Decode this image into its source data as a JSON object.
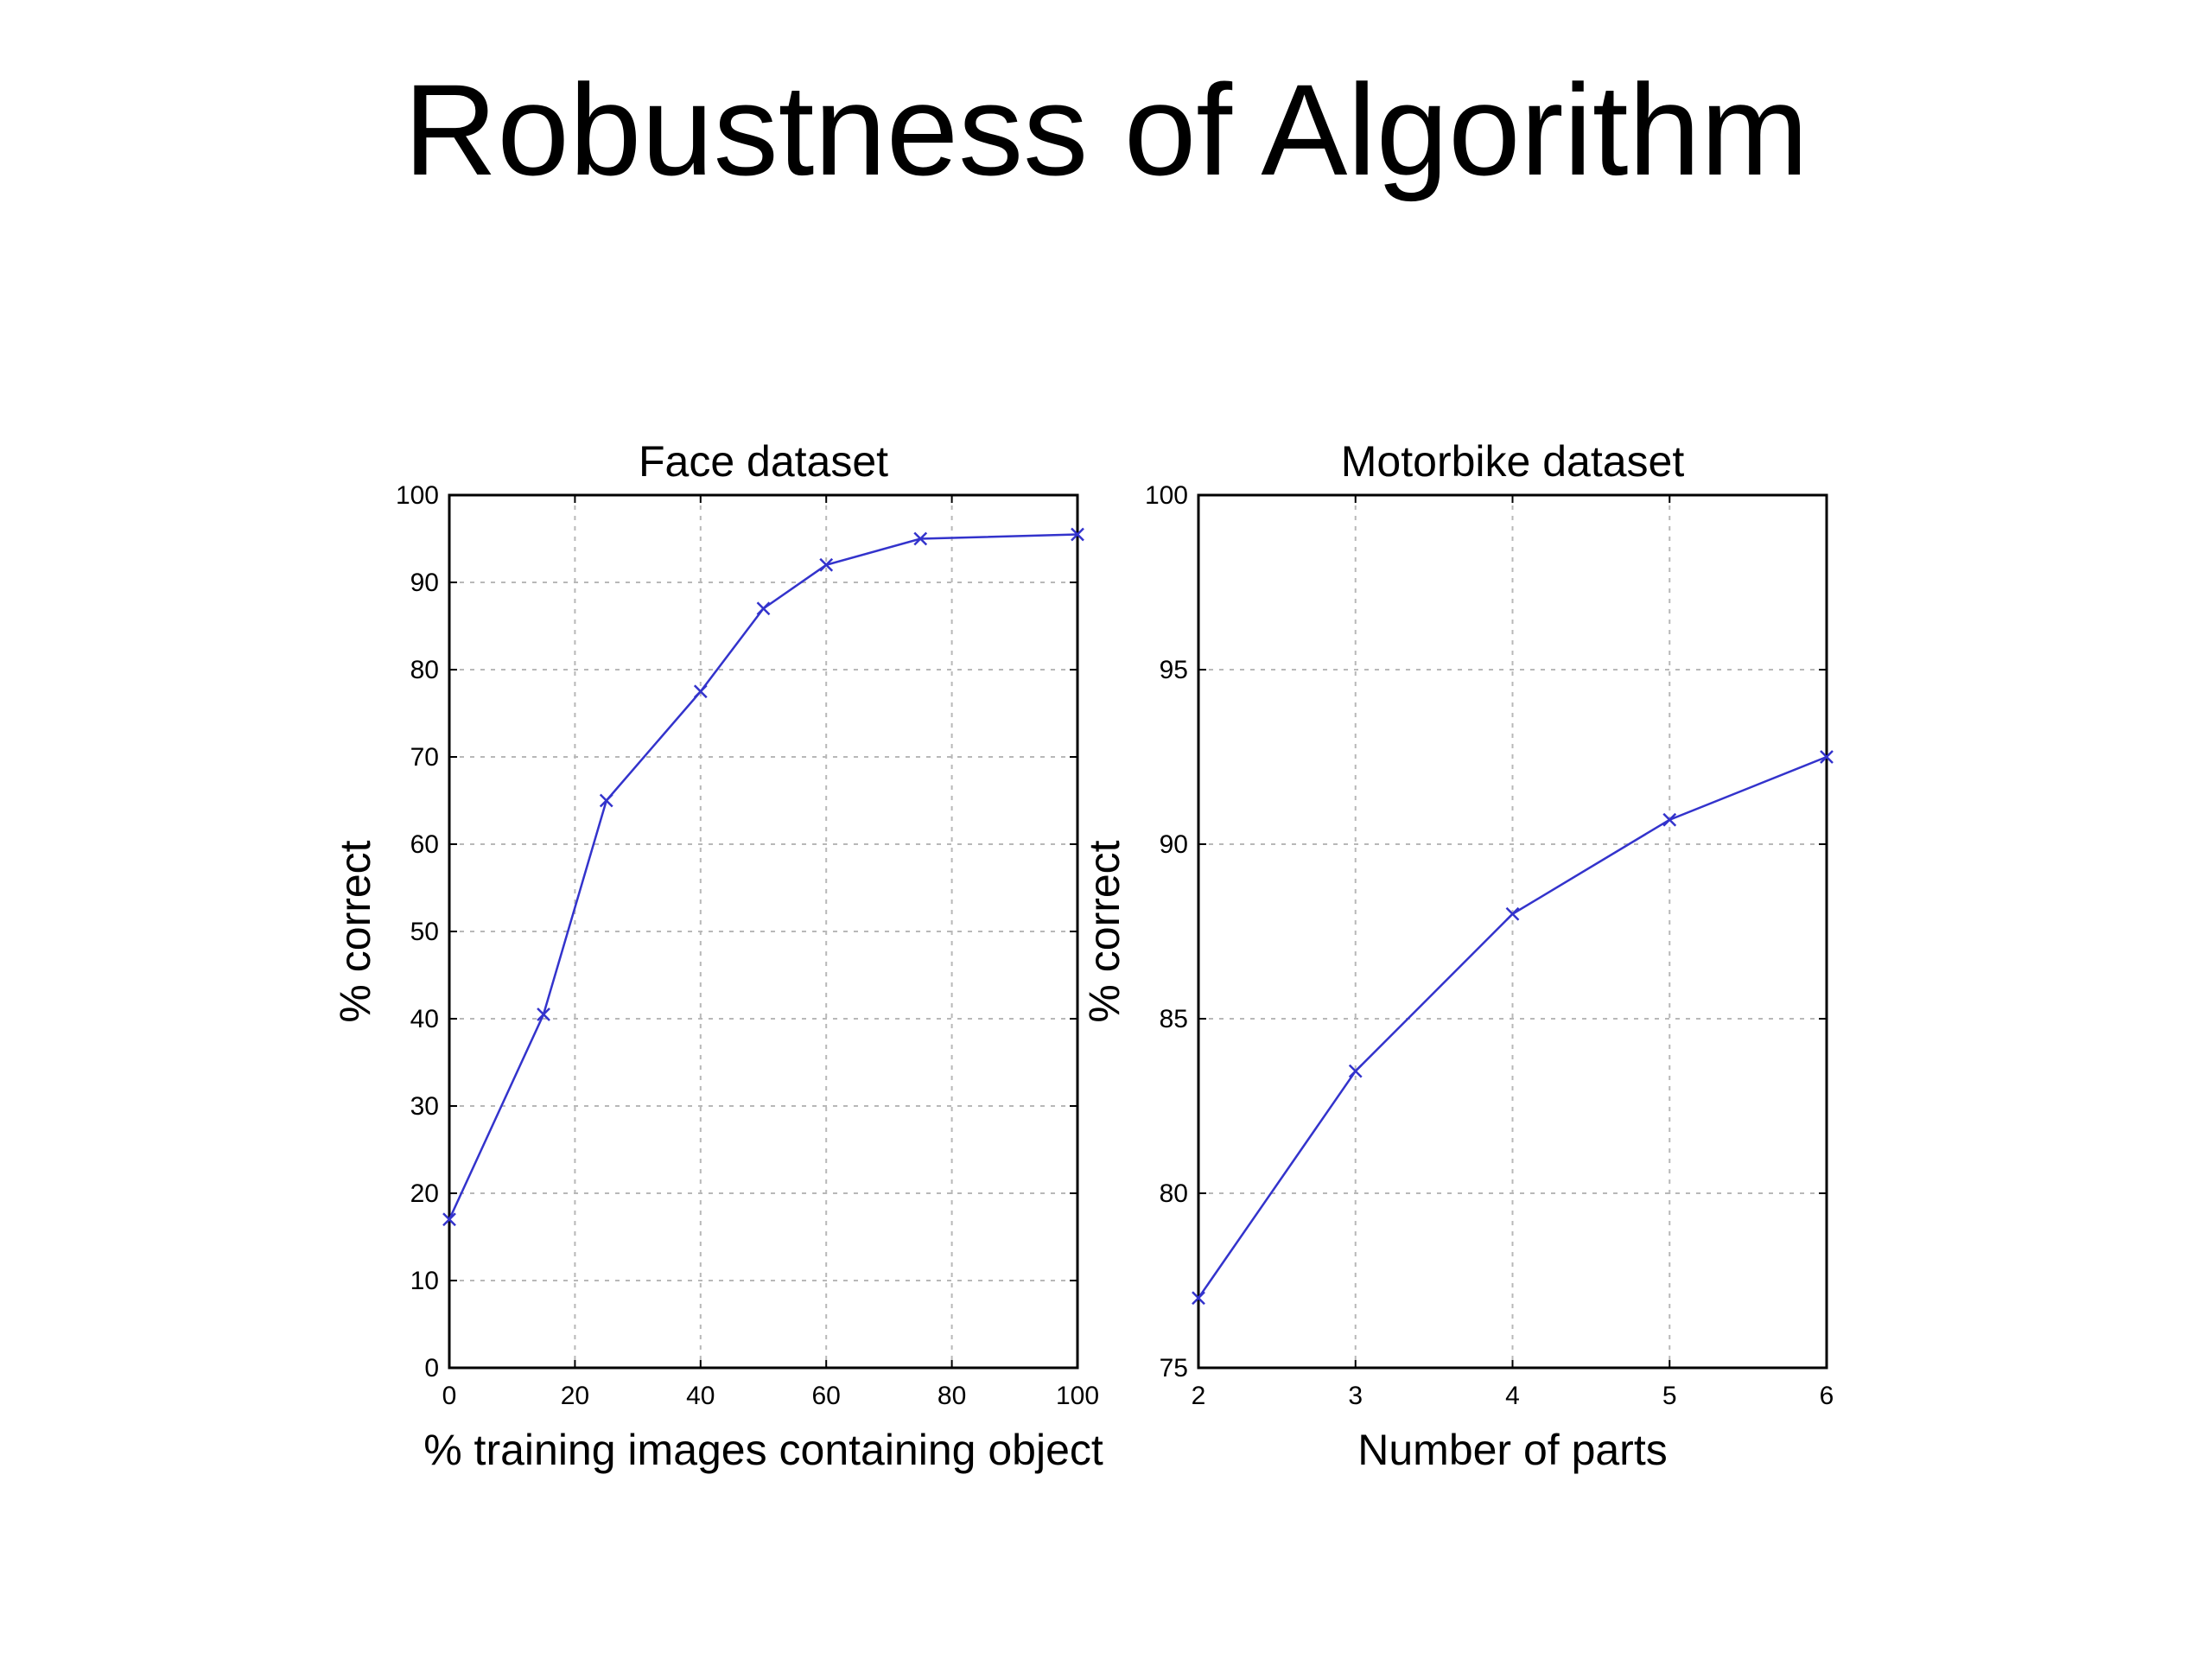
{
  "slide": {
    "title": "Robustness of Algorithm"
  },
  "colors": {
    "series": "#3333cc",
    "grid": "#b8b8b8",
    "axes": "#000000"
  },
  "chart_data": [
    {
      "type": "line",
      "title": "Face dataset",
      "xlabel": "% training images containing object",
      "ylabel": "% correct",
      "xlim": [
        0,
        100
      ],
      "ylim": [
        0,
        100
      ],
      "xticks": [
        0,
        20,
        40,
        60,
        80,
        100
      ],
      "yticks": [
        0,
        10,
        20,
        30,
        40,
        50,
        60,
        70,
        80,
        90,
        100
      ],
      "grid": true,
      "marker": "x",
      "series": [
        {
          "x": [
            0,
            15,
            25,
            40,
            50,
            60,
            75,
            100
          ],
          "y": [
            17,
            40.5,
            65,
            77.5,
            87,
            92,
            95,
            95.5
          ]
        }
      ]
    },
    {
      "type": "line",
      "title": "Motorbike dataset",
      "xlabel": "Number of parts",
      "ylabel": "% correct",
      "xlim": [
        2,
        6
      ],
      "ylim": [
        75,
        100
      ],
      "xticks": [
        2,
        3,
        4,
        5,
        6
      ],
      "yticks": [
        75,
        80,
        85,
        90,
        95,
        100
      ],
      "grid": true,
      "marker": "x",
      "series": [
        {
          "x": [
            2,
            3,
            4,
            5,
            6
          ],
          "y": [
            77,
            83.5,
            88,
            90.7,
            92.5
          ]
        }
      ]
    }
  ]
}
